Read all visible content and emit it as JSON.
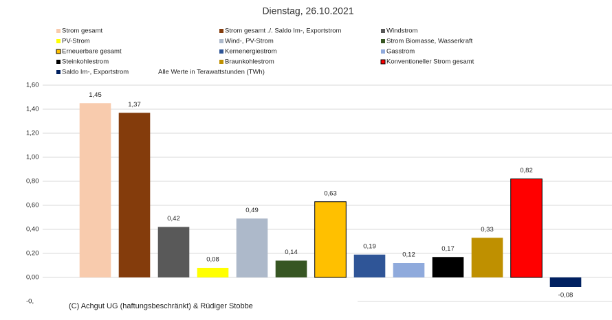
{
  "chart_data": {
    "type": "bar",
    "title": "Dienstag, 26.10.2021",
    "annotation": "Alle Werte in Terawattstunden (TWh)",
    "footer": "(C) Achgut UG (haftungsbeschränkt) & Rüdiger Stobbe",
    "categories": [
      "Strom gesamt",
      "Strom gesamt ./. Saldo Im-, Exportstrom",
      "Windstrom",
      "PV-Strom",
      "Wind-, PV-Strom",
      "Strom Biomasse, Wasserkraft",
      "Erneuerbare gesamt",
      "Kernenergiestrom",
      "Gasstrom",
      "Steinkohlestrom",
      "Braunkohlestrom",
      "Konventioneller Strom gesamt",
      "Saldo Im-, Exportstrom"
    ],
    "values": [
      1.45,
      1.37,
      0.42,
      0.08,
      0.49,
      0.14,
      0.63,
      0.19,
      0.12,
      0.17,
      0.33,
      0.82,
      -0.08
    ],
    "value_labels": [
      "1,45",
      "1,37",
      "0,42",
      "0,08",
      "0,49",
      "0,14",
      "0,63",
      "0,19",
      "0,12",
      "0,17",
      "0,33",
      "0,82",
      "-0,08"
    ],
    "colors": [
      "#f8cbad",
      "#843c0c",
      "#595959",
      "#ffff00",
      "#adb9ca",
      "#375623",
      "#ffc000",
      "#2f5597",
      "#8faadc",
      "#000000",
      "#bf9000",
      "#ff0000",
      "#002060"
    ],
    "outlined": [
      6,
      11
    ],
    "ylim": [
      -0.2,
      1.6
    ],
    "yticks": [
      {
        "value": -0.2,
        "label": "-0,"
      },
      {
        "value": 0,
        "label": "0,00"
      },
      {
        "value": 0.2,
        "label": "0,20"
      },
      {
        "value": 0.4,
        "label": "0,40"
      },
      {
        "value": 0.6,
        "label": "0,60"
      },
      {
        "value": 0.8,
        "label": "0,80"
      },
      {
        "value": 1.0,
        "label": "1,00"
      },
      {
        "value": 1.2,
        "label": "1,20"
      },
      {
        "value": 1.4,
        "label": "1,40"
      },
      {
        "value": 1.6,
        "label": "1,60"
      }
    ],
    "grid": true
  }
}
